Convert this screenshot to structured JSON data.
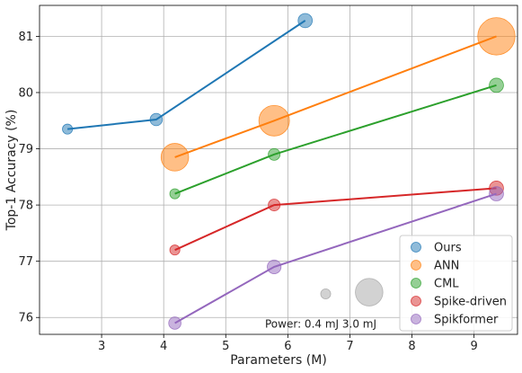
{
  "chart_data": {
    "type": "scatter",
    "title": "",
    "xlabel": "Parameters (M)",
    "ylabel": "Top-1 Accuracy (%)",
    "xlim": [
      2.0,
      9.7
    ],
    "ylim": [
      75.7,
      81.55
    ],
    "xticks": [
      3,
      4,
      5,
      6,
      7,
      8,
      9
    ],
    "yticks": [
      76,
      77,
      78,
      79,
      80,
      81
    ],
    "grid": true,
    "legend_position": "bottom-right",
    "series": [
      {
        "name": "Ours",
        "color": "#1f77b4",
        "points": [
          {
            "x": 2.45,
            "y": 79.35,
            "power": 0.4
          },
          {
            "x": 3.88,
            "y": 79.52,
            "power": 0.6
          },
          {
            "x": 6.28,
            "y": 81.28,
            "power": 0.8
          }
        ]
      },
      {
        "name": "ANN",
        "color": "#ff7f0e",
        "points": [
          {
            "x": 4.18,
            "y": 78.85,
            "power": 3.0
          },
          {
            "x": 5.78,
            "y": 79.5,
            "power": 3.7
          },
          {
            "x": 9.36,
            "y": 81.0,
            "power": 5.5
          }
        ]
      },
      {
        "name": "CML",
        "color": "#2ca02c",
        "points": [
          {
            "x": 4.18,
            "y": 78.2,
            "power": 0.4
          },
          {
            "x": 5.78,
            "y": 78.9,
            "power": 0.55
          },
          {
            "x": 9.36,
            "y": 80.13,
            "power": 0.8
          }
        ]
      },
      {
        "name": "Spike-driven",
        "color": "#d62728",
        "points": [
          {
            "x": 4.18,
            "y": 77.2,
            "power": 0.4
          },
          {
            "x": 5.78,
            "y": 78.0,
            "power": 0.55
          },
          {
            "x": 9.36,
            "y": 78.3,
            "power": 0.8
          }
        ]
      },
      {
        "name": "Spikformer",
        "color": "#9467bd",
        "points": [
          {
            "x": 4.18,
            "y": 75.9,
            "power": 0.6
          },
          {
            "x": 5.78,
            "y": 76.9,
            "power": 0.75
          },
          {
            "x": 9.36,
            "y": 78.2,
            "power": 0.8
          }
        ]
      }
    ],
    "size_legend": {
      "label": "Power:",
      "items": [
        {
          "text": "0.4 mJ",
          "power": 0.4,
          "x": 6.61,
          "y": 76.42
        },
        {
          "text": "3.0 mJ",
          "power": 3.0,
          "x": 7.31,
          "y": 76.45
        }
      ]
    }
  }
}
